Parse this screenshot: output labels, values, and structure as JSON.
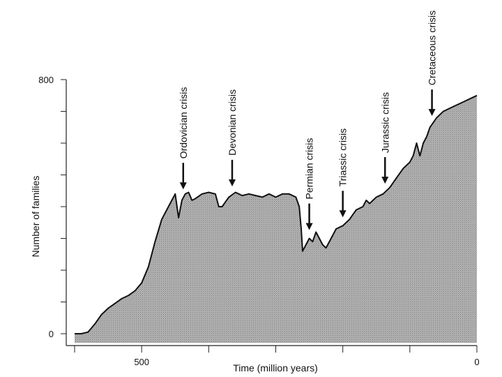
{
  "chart_data": {
    "type": "area",
    "title": "",
    "xlabel": "Time (million years)",
    "ylabel": "Number of families",
    "xlim": [
      600,
      0
    ],
    "ylim": [
      0,
      800
    ],
    "x_ticks": [
      500,
      0
    ],
    "y_ticks": [
      0,
      800
    ],
    "fill": "#a9a9a9",
    "grid": false,
    "series": [
      {
        "x": [
          600,
          590,
          580,
          570,
          560,
          550,
          540,
          530,
          520,
          510,
          500,
          490,
          480,
          470,
          460,
          450,
          445,
          440,
          435,
          430,
          425,
          420,
          410,
          400,
          390,
          385,
          380,
          375,
          370,
          360,
          350,
          340,
          330,
          320,
          310,
          300,
          290,
          280,
          270,
          265,
          262,
          260,
          255,
          250,
          245,
          240,
          235,
          230,
          225,
          220,
          210,
          200,
          190,
          180,
          170,
          165,
          160,
          150,
          140,
          130,
          120,
          110,
          100,
          95,
          90,
          85,
          80,
          75,
          70,
          60,
          50,
          40,
          30,
          20,
          10,
          0
        ],
        "y": [
          0,
          0,
          5,
          30,
          60,
          80,
          95,
          110,
          120,
          135,
          160,
          210,
          290,
          360,
          400,
          440,
          365,
          420,
          440,
          445,
          420,
          425,
          440,
          445,
          440,
          400,
          400,
          415,
          430,
          445,
          435,
          440,
          435,
          430,
          440,
          430,
          440,
          440,
          430,
          400,
          330,
          260,
          280,
          300,
          290,
          320,
          300,
          280,
          270,
          290,
          330,
          340,
          360,
          390,
          400,
          420,
          410,
          430,
          440,
          460,
          490,
          520,
          540,
          560,
          600,
          560,
          600,
          620,
          650,
          680,
          700,
          710,
          720,
          730,
          740,
          750
        ]
      }
    ],
    "annotations": [
      {
        "label": "Ordovician crisis",
        "x": 438
      },
      {
        "label": "Devonian crisis",
        "x": 365
      },
      {
        "label": "Permian crisis",
        "x": 250
      },
      {
        "label": "Triassic crisis",
        "x": 200
      },
      {
        "label": "Jurassic crisis",
        "x": 137
      },
      {
        "label": "Cretaceous crisis",
        "x": 67
      }
    ]
  }
}
